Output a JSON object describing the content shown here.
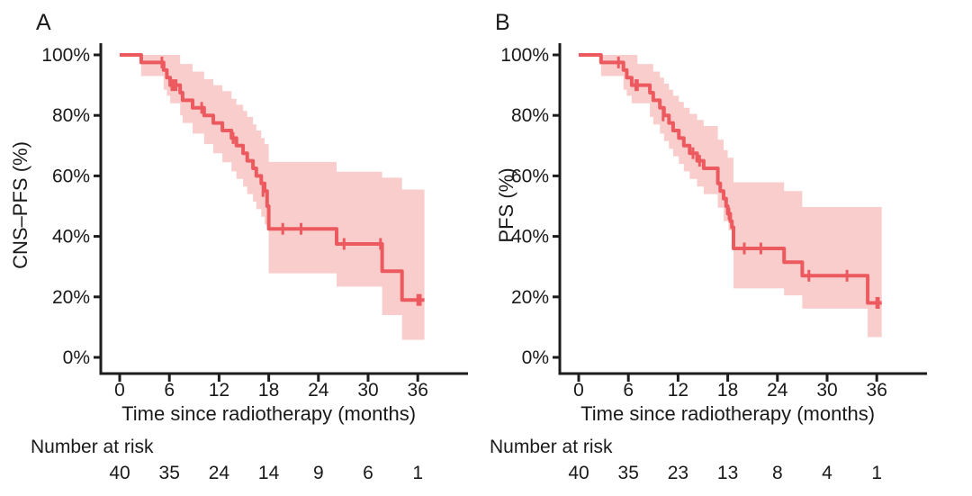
{
  "figure": {
    "background": "#FFFFFF",
    "text_color": "#1A1A1A",
    "axis_color": "#1C1C1C"
  },
  "chart_data": [
    {
      "type": "line",
      "subtype": "kaplan-meier-step-with-ci-band",
      "panel": "A",
      "ylabel": "CNS–PFS (%)",
      "xlabel": "Time since radiotherapy (months)",
      "x_ticks": [
        0,
        6,
        12,
        18,
        24,
        30,
        36
      ],
      "x_tick_labels": [
        "0",
        "6",
        "12",
        "18",
        "24",
        "30",
        "36"
      ],
      "y_ticks": [
        0,
        20,
        40,
        60,
        80,
        100
      ],
      "y_tick_labels": [
        "0%",
        "20%",
        "40%",
        "60%",
        "80%",
        "100%"
      ],
      "xlim": [
        0,
        40
      ],
      "ylim": [
        0,
        100
      ],
      "grid": false,
      "legend": false,
      "curve_color": "#EC5A5F",
      "band_color": "#F9CDCC",
      "steps_pct": [
        [
          0,
          100
        ],
        [
          2.6,
          97.5
        ],
        [
          5.3,
          95
        ],
        [
          5.7,
          92.5
        ],
        [
          6.1,
          90
        ],
        [
          7.3,
          87.5
        ],
        [
          7.6,
          85
        ],
        [
          8.8,
          82.5
        ],
        [
          10.2,
          80
        ],
        [
          11.3,
          77.5
        ],
        [
          12.4,
          75
        ],
        [
          13.5,
          72.5
        ],
        [
          14.1,
          70
        ],
        [
          14.9,
          67.5
        ],
        [
          15.4,
          65
        ],
        [
          16.1,
          62.5
        ],
        [
          16.5,
          60
        ],
        [
          17.1,
          57.5
        ],
        [
          17.5,
          55
        ],
        [
          17.8,
          50
        ],
        [
          18.0,
          42.5
        ],
        [
          26.2,
          37.5
        ],
        [
          31.7,
          28.5
        ],
        [
          34.1,
          19
        ]
      ],
      "end_time": 36.8,
      "censor_marks_pct": [
        [
          5.1,
          97.5
        ],
        [
          6.3,
          90
        ],
        [
          6.55,
          90
        ],
        [
          6.8,
          90
        ],
        [
          9.9,
          82.5
        ],
        [
          13.7,
          72.5
        ],
        [
          17.3,
          55
        ],
        [
          19.7,
          42.5
        ],
        [
          21.9,
          42.5
        ],
        [
          27.1,
          37.5
        ],
        [
          31.5,
          37.5
        ],
        [
          36.0,
          19
        ],
        [
          36.3,
          19
        ]
      ],
      "ci_upper_pct": [
        [
          0,
          100
        ],
        [
          7.3,
          97
        ],
        [
          8.8,
          94.5
        ],
        [
          10.2,
          92
        ],
        [
          11.3,
          90
        ],
        [
          12.4,
          88
        ],
        [
          13.5,
          85.5
        ],
        [
          14.1,
          83.5
        ],
        [
          14.9,
          81.5
        ],
        [
          15.4,
          79.5
        ],
        [
          16.1,
          77
        ],
        [
          16.5,
          75
        ],
        [
          17.1,
          72.5
        ],
        [
          17.5,
          70.5
        ],
        [
          18.0,
          64.6
        ],
        [
          26.2,
          61.4
        ],
        [
          31.7,
          59.4
        ],
        [
          34.1,
          55.5
        ]
      ],
      "ci_lower_pct": [
        [
          0,
          100
        ],
        [
          2.6,
          93
        ],
        [
          5.3,
          88.5
        ],
        [
          5.7,
          86.5
        ],
        [
          6.1,
          84
        ],
        [
          7.3,
          80
        ],
        [
          7.6,
          77.5
        ],
        [
          8.8,
          74
        ],
        [
          10.2,
          70.5
        ],
        [
          11.3,
          67.5
        ],
        [
          12.4,
          64.5
        ],
        [
          13.5,
          61.5
        ],
        [
          14.1,
          59
        ],
        [
          14.9,
          56.5
        ],
        [
          15.4,
          54
        ],
        [
          16.1,
          51.5
        ],
        [
          16.5,
          49
        ],
        [
          17.1,
          46.5
        ],
        [
          17.5,
          44
        ],
        [
          18.0,
          27.8
        ],
        [
          26.2,
          23.4
        ],
        [
          31.7,
          14
        ],
        [
          34.1,
          5.8
        ]
      ],
      "risk_label": "Number at risk",
      "risk_times": [
        0,
        6,
        12,
        18,
        24,
        30,
        36
      ],
      "risk_counts": [
        "40",
        "35",
        "24",
        "14",
        "9",
        "6",
        "1"
      ]
    },
    {
      "type": "line",
      "subtype": "kaplan-meier-step-with-ci-band",
      "panel": "B",
      "ylabel": "PFS (%)",
      "xlabel": "Time since radiotherapy (months)",
      "x_ticks": [
        0,
        6,
        12,
        18,
        24,
        30,
        36
      ],
      "x_tick_labels": [
        "0",
        "6",
        "12",
        "18",
        "24",
        "30",
        "36"
      ],
      "y_ticks": [
        0,
        20,
        40,
        60,
        80,
        100
      ],
      "y_tick_labels": [
        "0%",
        "20%",
        "40%",
        "60%",
        "80%",
        "100%"
      ],
      "xlim": [
        0,
        40
      ],
      "ylim": [
        0,
        100
      ],
      "grid": false,
      "legend": false,
      "curve_color": "#EC5A5F",
      "band_color": "#F9CDCC",
      "steps_pct": [
        [
          0,
          100
        ],
        [
          2.7,
          97.5
        ],
        [
          5.4,
          95
        ],
        [
          5.8,
          92.5
        ],
        [
          6.4,
          90
        ],
        [
          8.6,
          87.5
        ],
        [
          9.0,
          85
        ],
        [
          9.8,
          82.5
        ],
        [
          10.3,
          80
        ],
        [
          10.9,
          77.5
        ],
        [
          11.4,
          75
        ],
        [
          12.1,
          72.5
        ],
        [
          12.7,
          70
        ],
        [
          13.4,
          67.5
        ],
        [
          14.3,
          65
        ],
        [
          15.1,
          62.5
        ],
        [
          16.8,
          57.5
        ],
        [
          17.1,
          55
        ],
        [
          17.5,
          52.5
        ],
        [
          17.8,
          50
        ],
        [
          18.0,
          47.5
        ],
        [
          18.3,
          45
        ],
        [
          18.5,
          43
        ],
        [
          18.7,
          36
        ],
        [
          24.8,
          31.5
        ],
        [
          27.0,
          27
        ],
        [
          34.9,
          18
        ]
      ],
      "end_time": 36.6,
      "censor_marks_pct": [
        [
          4.8,
          97.5
        ],
        [
          6.9,
          90
        ],
        [
          7.1,
          90
        ],
        [
          10.2,
          80
        ],
        [
          13.8,
          67.5
        ],
        [
          14.6,
          65
        ],
        [
          18.15,
          47.5
        ],
        [
          20.0,
          36
        ],
        [
          22.0,
          36
        ],
        [
          27.8,
          27
        ],
        [
          32.4,
          27
        ],
        [
          36.0,
          18
        ],
        [
          36.2,
          18
        ]
      ],
      "ci_upper_pct": [
        [
          0,
          100
        ],
        [
          7.1,
          97
        ],
        [
          9.0,
          94.5
        ],
        [
          9.8,
          92.5
        ],
        [
          10.3,
          90.5
        ],
        [
          10.9,
          88.5
        ],
        [
          11.4,
          86.5
        ],
        [
          12.1,
          84.5
        ],
        [
          12.7,
          82.5
        ],
        [
          13.4,
          80.5
        ],
        [
          14.3,
          78.5
        ],
        [
          15.1,
          76.5
        ],
        [
          16.8,
          72
        ],
        [
          17.5,
          68.5
        ],
        [
          18.0,
          66
        ],
        [
          18.7,
          57.9
        ],
        [
          24.8,
          55
        ],
        [
          27.0,
          49.7
        ]
      ],
      "ci_lower_pct": [
        [
          0,
          100
        ],
        [
          2.7,
          93
        ],
        [
          5.4,
          88.5
        ],
        [
          5.8,
          86.5
        ],
        [
          6.4,
          84
        ],
        [
          8.6,
          79.5
        ],
        [
          9.0,
          77
        ],
        [
          9.8,
          74
        ],
        [
          10.3,
          71.5
        ],
        [
          10.9,
          69
        ],
        [
          11.4,
          66.5
        ],
        [
          12.1,
          64
        ],
        [
          12.7,
          61.5
        ],
        [
          13.4,
          59
        ],
        [
          14.3,
          56.5
        ],
        [
          15.1,
          54
        ],
        [
          16.8,
          49.5
        ],
        [
          17.5,
          45
        ],
        [
          18.1,
          42
        ],
        [
          18.7,
          22.8
        ],
        [
          24.8,
          20.5
        ],
        [
          27.0,
          16.1
        ],
        [
          34.9,
          6.7
        ]
      ],
      "risk_label": "Number at risk",
      "risk_times": [
        0,
        6,
        12,
        18,
        24,
        30,
        36
      ],
      "risk_counts": [
        "40",
        "35",
        "23",
        "13",
        "8",
        "4",
        "1"
      ]
    }
  ]
}
